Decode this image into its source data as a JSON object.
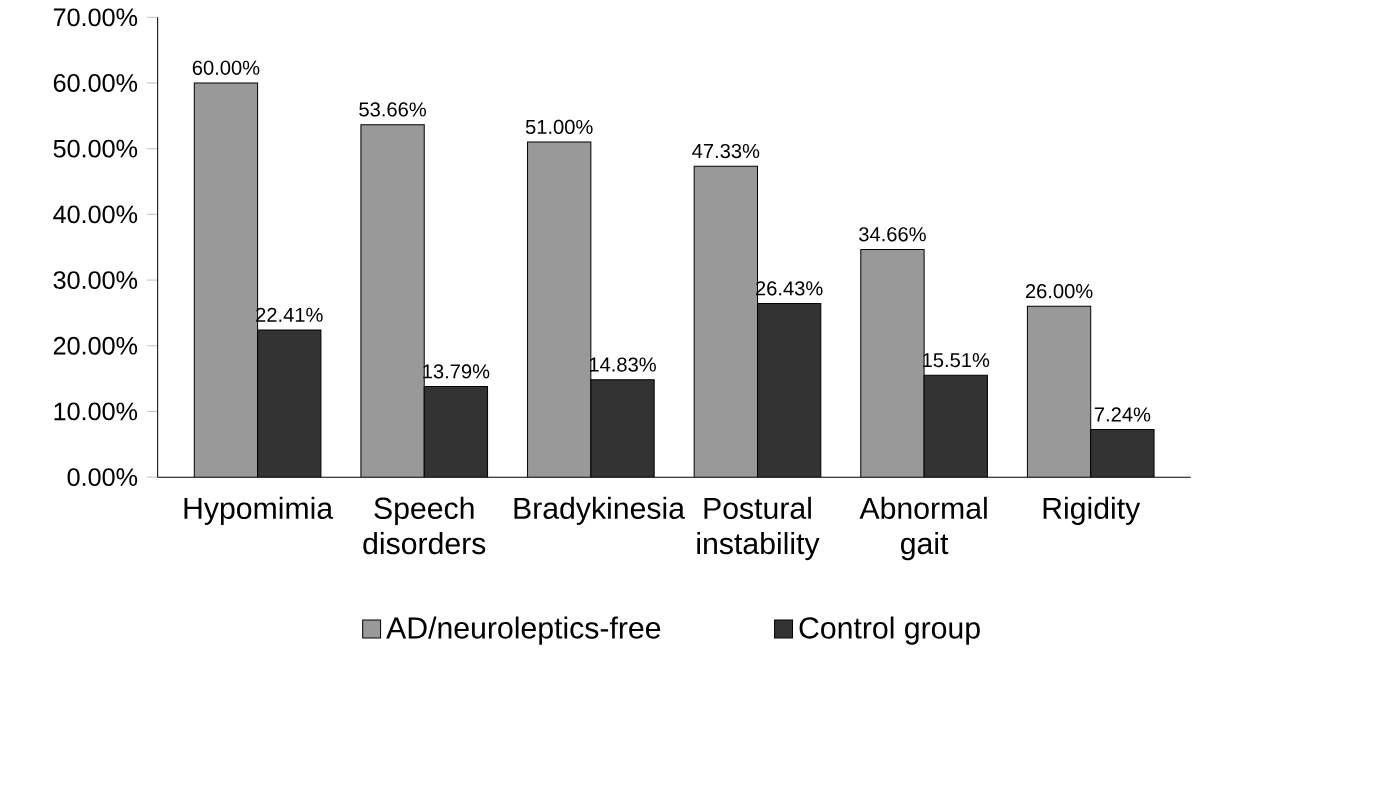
{
  "chart_data": {
    "type": "bar",
    "categories": [
      "Hypomimia",
      "Speech disorders",
      "Bradykinesia",
      "Postural instability",
      "Abnormal gait",
      "Rigidity"
    ],
    "series": [
      {
        "name": "AD/neuroleptics-free",
        "color": "#999999",
        "values": [
          60.0,
          53.66,
          51.0,
          47.33,
          34.66,
          26.0
        ],
        "value_labels": [
          "60.00%",
          "53.66%",
          "51.00%",
          "47.33%",
          "34.66%",
          "26.00%"
        ]
      },
      {
        "name": "Control group",
        "color": "#333333",
        "values": [
          22.41,
          13.79,
          14.83,
          26.43,
          15.51,
          7.24
        ],
        "value_labels": [
          "22.41%",
          "13.79%",
          "14.83%",
          "26.43%",
          "15.51%",
          "7.24%"
        ]
      }
    ],
    "ylim": [
      0,
      70
    ],
    "yticks": [
      {
        "value": 0,
        "label": "0.00%"
      },
      {
        "value": 10,
        "label": "10.00%"
      },
      {
        "value": 20,
        "label": "20.00%"
      },
      {
        "value": 30,
        "label": "30.00%"
      },
      {
        "value": 40,
        "label": "40.00%"
      },
      {
        "value": 50,
        "label": "50.00%"
      },
      {
        "value": 60,
        "label": "60.00%"
      },
      {
        "value": 70,
        "label": "70.00%"
      }
    ],
    "grid": false,
    "legend": "bottom"
  }
}
